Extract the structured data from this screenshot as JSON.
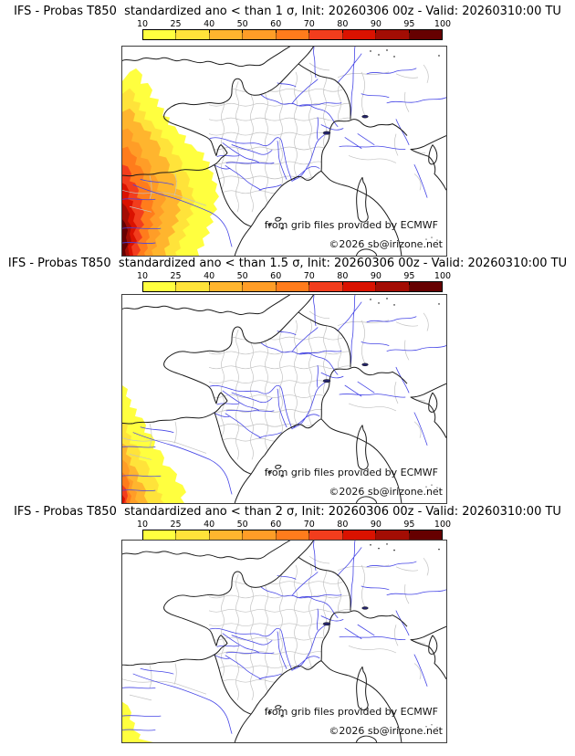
{
  "page": {
    "background": "#ffffff"
  },
  "run": {
    "model": "IFS",
    "field": "T850",
    "init": "20260306 00z",
    "valid": "20260310:00 TU"
  },
  "colorbar": {
    "tick_labels": [
      "10",
      "25",
      "40",
      "50",
      "60",
      "70",
      "80",
      "90",
      "95",
      "100"
    ],
    "segment_colors": [
      "#ffff3f",
      "#ffe33a",
      "#ffb52e",
      "#ff9d27",
      "#ff7c1c",
      "#f23d1d",
      "#da1200",
      "#a30d04",
      "#660000"
    ]
  },
  "map_style": {
    "river_color": "#4545e6",
    "admin_color": "#c2c2c2",
    "coast_color": "#1a1a1a",
    "lake_color": "#24246a"
  },
  "panels": [
    {
      "id": "sigma-1",
      "title": "IFS - Probas T850  standardized ano < than 1 σ, Init: 20260306 00z - Valid: 20260310:00 TU",
      "threshold_sigma": "1",
      "credit": "from grib files provided by ECMWF",
      "copyright": "©2026 sb@irizone.net"
    },
    {
      "id": "sigma-1.5",
      "title": "IFS - Probas T850  standardized ano < than 1.5 σ, Init: 20260306 00z - Valid: 20260310:00 TU",
      "threshold_sigma": "1.5",
      "credit": "from grib files provided by ECMWF",
      "copyright": "©2026 sb@irizone.net"
    },
    {
      "id": "sigma-2",
      "title": "IFS - Probas T850  standardized ano < than 2 σ, Init: 20260306 00z - Valid: 20260310:00 TU",
      "threshold_sigma": "2",
      "credit": "from grib files provided by ECMWF",
      "copyright": "©2026 sb@irizone.net"
    }
  ]
}
